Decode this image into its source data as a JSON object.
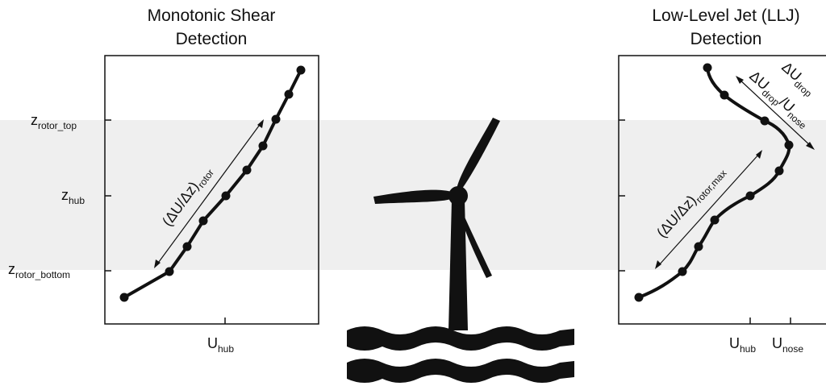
{
  "left_panel": {
    "title_line1": "Monotonic Shear",
    "title_line2": "Detection",
    "y_labels": [
      {
        "main": "z",
        "sub": "rotor_top"
      },
      {
        "main": "z",
        "sub": "hub"
      },
      {
        "main": "z",
        "sub": "rotor_bottom"
      }
    ],
    "x_label": {
      "main": "U",
      "sub": "hub"
    },
    "annotation": {
      "prefix": "(ΔU/Δz)",
      "sub": "rotor"
    }
  },
  "right_panel": {
    "title_line1": "Low-Level Jet (LLJ)",
    "title_line2": "Detection",
    "x_labels": [
      {
        "main": "U",
        "sub": "hub"
      },
      {
        "main": "U",
        "sub": "nose"
      }
    ],
    "annotation_shear": {
      "prefix": "(ΔU/Δz)",
      "sub": "rotor,max"
    },
    "annotation_drop_abs": {
      "main": "ΔU",
      "sub": "drop"
    },
    "annotation_drop_rel": {
      "main": "ΔU",
      "sub": "drop",
      "sep": "/U",
      "sub2": "nose"
    }
  },
  "colors": {
    "rotor_band": "#efefef",
    "line": "#111111",
    "turbine": "#111111"
  },
  "icons": [
    "wind-turbine-icon",
    "ocean-waves-icon"
  ]
}
